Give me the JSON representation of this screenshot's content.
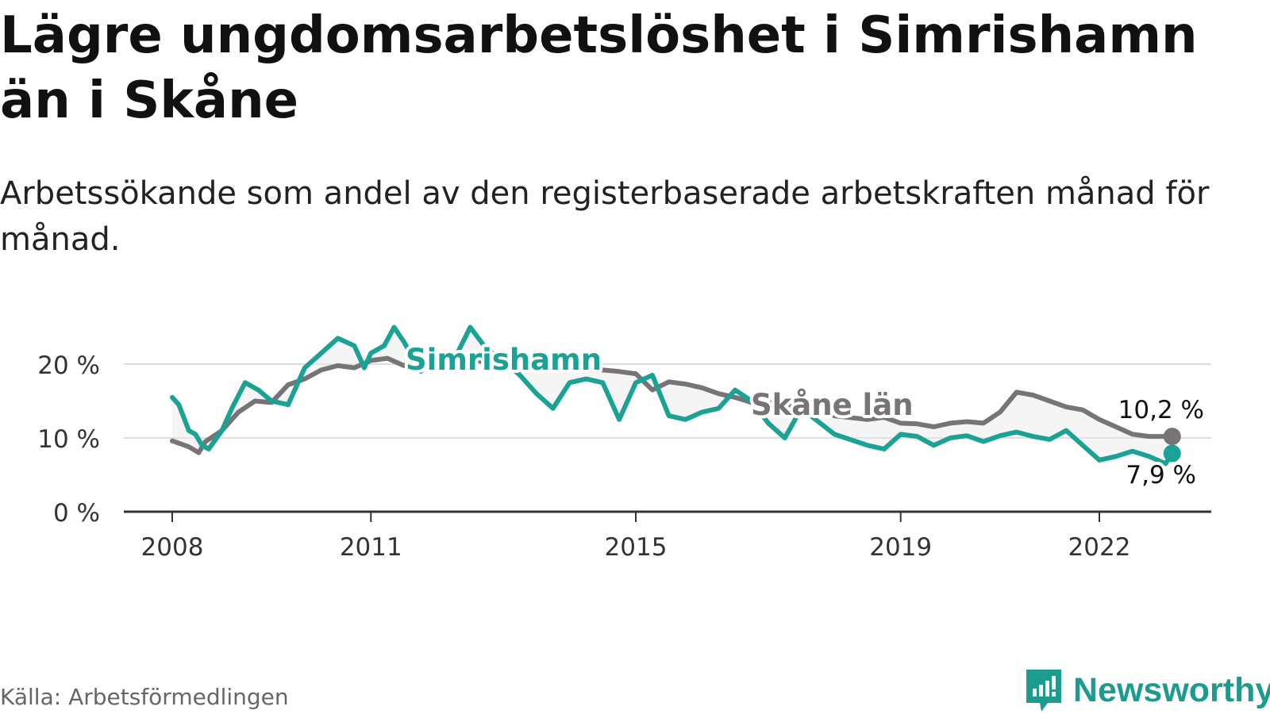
{
  "title": "Lägre ungdomsarbetslöshet i Simrishamn än i Skåne",
  "subtitle": "Arbetssökande som andel av den registerbaserade arbetskraften månad för månad.",
  "source": "Källa: Arbetsförmedlingen",
  "brand": "Newsworthy",
  "colors": {
    "simrishamn": "#1aa394",
    "skane": "#777377",
    "grid": "#dddddd",
    "axis": "#333333",
    "band": "#ececec"
  },
  "chart_data": {
    "type": "line",
    "title": "Lägre ungdomsarbetslöshet i Simrishamn än i Skåne",
    "xlabel": "",
    "ylabel": "",
    "xlim": [
      2008,
      2023.4
    ],
    "ylim": [
      0,
      21
    ],
    "y_ticks": [
      0,
      10,
      20
    ],
    "y_tick_labels": [
      "0 %",
      "10 %",
      "20 %"
    ],
    "x_ticks": [
      2008,
      2011,
      2015,
      2019,
      2022
    ],
    "x_tick_labels": [
      "2008",
      "2011",
      "2015",
      "2019",
      "2022"
    ],
    "series": [
      {
        "name": "Skåne län",
        "label": "Skåne län",
        "end_label": "10,2 %",
        "points": [
          [
            2008.0,
            9.6
          ],
          [
            2008.25,
            8.8
          ],
          [
            2008.4,
            8.0
          ],
          [
            2008.5,
            9.5
          ],
          [
            2008.75,
            11.0
          ],
          [
            2009.0,
            13.5
          ],
          [
            2009.25,
            15.0
          ],
          [
            2009.5,
            14.8
          ],
          [
            2009.75,
            17.2
          ],
          [
            2010.0,
            18.0
          ],
          [
            2010.25,
            19.2
          ],
          [
            2010.5,
            19.8
          ],
          [
            2010.75,
            19.5
          ],
          [
            2011.0,
            20.5
          ],
          [
            2011.25,
            20.8
          ],
          [
            2011.5,
            19.8
          ],
          [
            2011.75,
            20.3
          ],
          [
            2012.0,
            20.2
          ],
          [
            2012.25,
            19.8
          ],
          [
            2012.5,
            20.6
          ],
          [
            2013.0,
            20.0
          ],
          [
            2013.5,
            19.5
          ],
          [
            2014.0,
            19.6
          ],
          [
            2014.5,
            19.2
          ],
          [
            2014.75,
            19.0
          ],
          [
            2015.0,
            18.7
          ],
          [
            2015.25,
            16.5
          ],
          [
            2015.5,
            17.6
          ],
          [
            2015.75,
            17.3
          ],
          [
            2016.0,
            16.8
          ],
          [
            2016.25,
            16.0
          ],
          [
            2016.5,
            15.5
          ],
          [
            2016.75,
            14.8
          ],
          [
            2017.0,
            15.0
          ],
          [
            2017.5,
            14.0
          ],
          [
            2018.0,
            13.0
          ],
          [
            2018.5,
            12.5
          ],
          [
            2018.75,
            12.8
          ],
          [
            2019.0,
            12.0
          ],
          [
            2019.25,
            11.9
          ],
          [
            2019.5,
            11.5
          ],
          [
            2019.75,
            12.0
          ],
          [
            2020.0,
            12.2
          ],
          [
            2020.25,
            12.0
          ],
          [
            2020.5,
            13.5
          ],
          [
            2020.75,
            16.2
          ],
          [
            2021.0,
            15.8
          ],
          [
            2021.25,
            15.0
          ],
          [
            2021.5,
            14.2
          ],
          [
            2021.75,
            13.8
          ],
          [
            2022.0,
            12.5
          ],
          [
            2022.25,
            11.5
          ],
          [
            2022.5,
            10.5
          ],
          [
            2022.75,
            10.2
          ],
          [
            2023.0,
            10.2
          ],
          [
            2023.1,
            10.2
          ]
        ]
      },
      {
        "name": "Simrishamn",
        "label": "Simrishamn",
        "end_label": "7,9 %",
        "points": [
          [
            2008.0,
            15.5
          ],
          [
            2008.1,
            14.5
          ],
          [
            2008.25,
            11.0
          ],
          [
            2008.35,
            10.5
          ],
          [
            2008.45,
            9.0
          ],
          [
            2008.55,
            8.5
          ],
          [
            2008.75,
            11.0
          ],
          [
            2008.9,
            14.0
          ],
          [
            2009.1,
            17.5
          ],
          [
            2009.3,
            16.5
          ],
          [
            2009.5,
            15.0
          ],
          [
            2009.75,
            14.5
          ],
          [
            2010.0,
            19.5
          ],
          [
            2010.25,
            21.5
          ],
          [
            2010.5,
            23.5
          ],
          [
            2010.75,
            22.5
          ],
          [
            2010.9,
            19.5
          ],
          [
            2011.0,
            21.5
          ],
          [
            2011.2,
            22.5
          ],
          [
            2011.35,
            25.0
          ],
          [
            2011.5,
            23.0
          ],
          [
            2011.75,
            19.0
          ],
          [
            2012.0,
            21.5
          ],
          [
            2012.25,
            20.5
          ],
          [
            2012.5,
            25.0
          ],
          [
            2012.75,
            22.0
          ],
          [
            2013.0,
            20.5
          ],
          [
            2013.25,
            18.5
          ],
          [
            2013.5,
            16.0
          ],
          [
            2013.75,
            14.0
          ],
          [
            2014.0,
            17.5
          ],
          [
            2014.25,
            18.0
          ],
          [
            2014.5,
            17.5
          ],
          [
            2014.75,
            12.5
          ],
          [
            2015.0,
            17.5
          ],
          [
            2015.25,
            18.5
          ],
          [
            2015.5,
            13.0
          ],
          [
            2015.75,
            12.5
          ],
          [
            2016.0,
            13.5
          ],
          [
            2016.25,
            14.0
          ],
          [
            2016.5,
            16.5
          ],
          [
            2016.75,
            15.0
          ],
          [
            2017.0,
            12.0
          ],
          [
            2017.25,
            10.0
          ],
          [
            2017.5,
            14.0
          ],
          [
            2018.0,
            10.5
          ],
          [
            2018.5,
            9.0
          ],
          [
            2018.75,
            8.5
          ],
          [
            2019.0,
            10.5
          ],
          [
            2019.25,
            10.2
          ],
          [
            2019.5,
            9.0
          ],
          [
            2019.75,
            10.0
          ],
          [
            2020.0,
            10.3
          ],
          [
            2020.25,
            9.5
          ],
          [
            2020.5,
            10.3
          ],
          [
            2020.75,
            10.8
          ],
          [
            2021.0,
            10.2
          ],
          [
            2021.25,
            9.8
          ],
          [
            2021.5,
            11.0
          ],
          [
            2021.75,
            9.0
          ],
          [
            2022.0,
            7.0
          ],
          [
            2022.25,
            7.5
          ],
          [
            2022.5,
            8.2
          ],
          [
            2022.75,
            7.5
          ],
          [
            2023.0,
            6.5
          ],
          [
            2023.1,
            7.9
          ]
        ]
      }
    ]
  }
}
